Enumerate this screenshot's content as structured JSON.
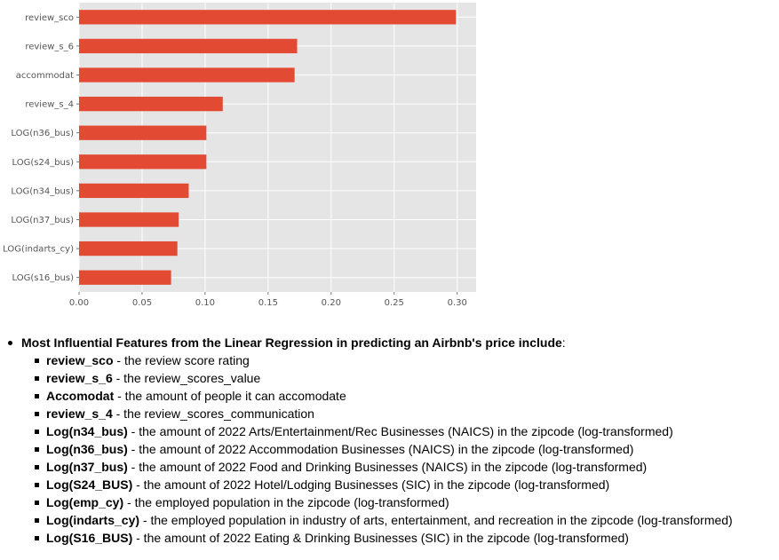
{
  "chart_data": {
    "type": "bar",
    "orientation": "horizontal",
    "categories": [
      "review_sco",
      "review_s_6",
      "accommodat",
      "review_s_4",
      "LOG(n36_bus)",
      "LOG(s24_bus)",
      "LOG(n34_bus)",
      "LOG(n37_bus)",
      "LOG(indarts_cy)",
      "LOG(s16_bus)"
    ],
    "values": [
      0.299,
      0.173,
      0.171,
      0.114,
      0.101,
      0.101,
      0.087,
      0.079,
      0.078,
      0.073
    ],
    "xlim": [
      0,
      0.315
    ],
    "xticks": [
      "0.00",
      "0.05",
      "0.10",
      "0.15",
      "0.20",
      "0.25",
      "0.30"
    ],
    "xtick_values": [
      0,
      0.05,
      0.1,
      0.15,
      0.2,
      0.25,
      0.3
    ],
    "bar_color": "#E24A33",
    "background": "#E5E5E5",
    "grid": true,
    "title": "",
    "xlabel": "",
    "ylabel": ""
  },
  "notes": {
    "heading": "Most Influential Features from the Linear Regression in predicting an Airbnb's price include",
    "heading_suffix": ":",
    "items": [
      {
        "term": "review_sco",
        "desc": " - the review score rating"
      },
      {
        "term": "review_s_6",
        "desc": " - the review_scores_value"
      },
      {
        "term": "Accomodat",
        "desc": " - the amount of people it can accomodate"
      },
      {
        "term": "review_s_4",
        "desc": " - the review_scores_communication"
      },
      {
        "term": "Log(n34_bus)",
        "desc": " - the amount of 2022 Arts/Entertainment/Rec Businesses (NAICS) in the zipcode (log-transformed)"
      },
      {
        "term": "Log(n36_bus)",
        "desc": " - the amount of 2022 Accommodation Businesses (NAICS) in the zipcode (log-transformed)"
      },
      {
        "term": "Log(n37_bus)",
        "desc": " - the amount of 2022 Food and Drinking Businesses (NAICS) in the zipcode (log-transformed)"
      },
      {
        "term": "Log(S24_BUS)",
        "desc": " - the amount of 2022 Hotel/Lodging Businesses (SIC) in the zipcode (log-transformed)"
      },
      {
        "term": "Log(emp_cy)",
        "desc": " - the employed population in the zipcode (log-transformed)"
      },
      {
        "term": "Log(indarts_cy)",
        "desc": " - the employed population in industry of arts, entertainment, and recreation in the zipcode (log-transformed)"
      },
      {
        "term": "Log(S16_BUS)",
        "desc": " - the amount of 2022 Eating & Drinking Businesses (SIC) in the zipcode (log-transformed)"
      }
    ]
  }
}
